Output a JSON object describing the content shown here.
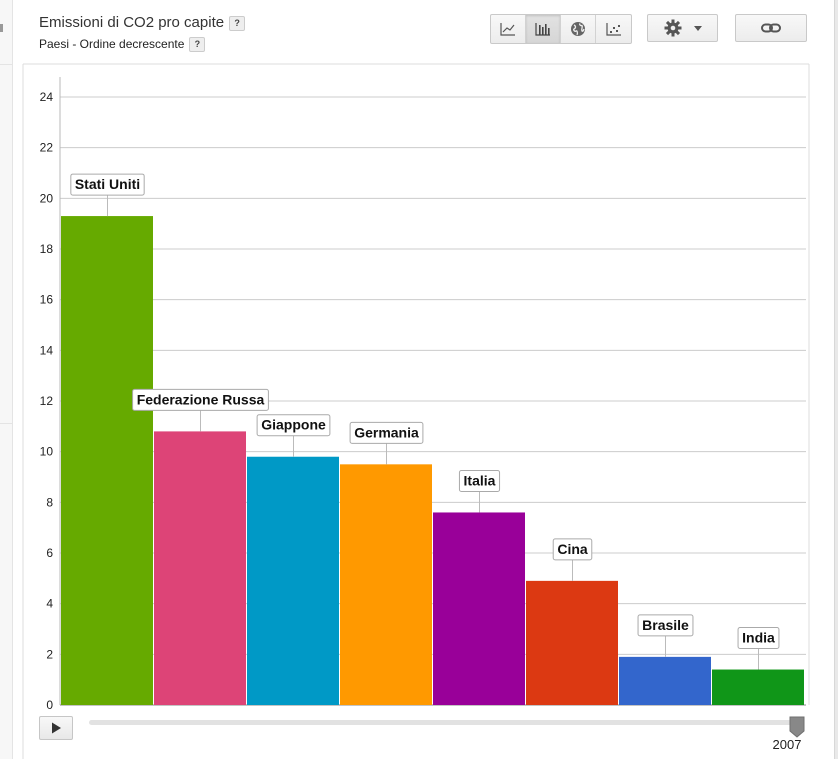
{
  "header": {
    "title": "Emissioni di CO2 pro capite",
    "subtitle": "Paesi - Ordine decrescente",
    "help_glyph": "?"
  },
  "toolbar": {
    "chart_types": [
      {
        "icon": "line-chart-icon"
      },
      {
        "icon": "bar-chart-icon",
        "active": true
      },
      {
        "icon": "globe-icon"
      },
      {
        "icon": "scatter-chart-icon"
      }
    ],
    "settings_icon": "gear-icon",
    "dropdown_icon": "caret-down-icon",
    "link_icon": "link-icon"
  },
  "timeline": {
    "play_icon": "play-icon",
    "current_year": "2007",
    "progress": 1.0
  },
  "chart_data": {
    "type": "bar",
    "categories": [
      "Stati Uniti",
      "Federazione Russa",
      "Giappone",
      "Germania",
      "Italia",
      "Cina",
      "Brasile",
      "India"
    ],
    "values": [
      19.3,
      10.8,
      9.8,
      9.5,
      7.6,
      4.9,
      1.9,
      1.4
    ],
    "colors": [
      "#66aa00",
      "#dd4477",
      "#0099c6",
      "#ff9900",
      "#990099",
      "#dc3912",
      "#3366cc",
      "#109618"
    ],
    "title": "Emissioni di CO2 pro capite",
    "subtitle": "Paesi - Ordine decrescente",
    "xlabel": "",
    "ylabel": "",
    "ylim": [
      0,
      24
    ],
    "yticks": [
      0,
      2,
      4,
      6,
      8,
      10,
      12,
      14,
      16,
      18,
      20,
      22,
      24
    ],
    "grid": true,
    "legend": "none",
    "year": "2007"
  }
}
